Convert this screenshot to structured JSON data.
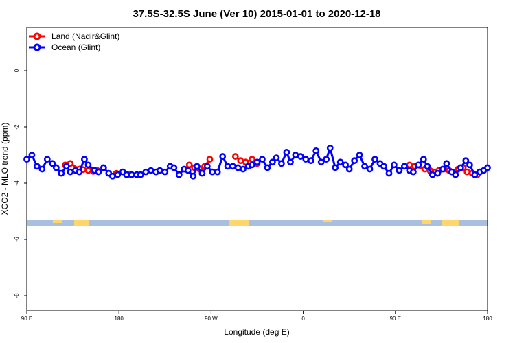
{
  "chart_data": {
    "type": "line",
    "title": "37.5S-32.5S June (Ver 10)   2015-01-01 to 2020-12-18",
    "xlabel": "Longitude (deg E)",
    "ylabel": "XCO2 - MLO trend (ppm)",
    "xlim": [
      90,
      450
    ],
    "ylim": [
      -8.3,
      1.5
    ],
    "x_ticks": [
      {
        "value": 90,
        "label": "90 E"
      },
      {
        "value": 180,
        "label": "180"
      },
      {
        "value": 270,
        "label": "90 W"
      },
      {
        "value": 360,
        "label": "0"
      },
      {
        "value": 450,
        "label": "90 E"
      },
      {
        "value": 540,
        "label": "180"
      }
    ],
    "y_ticks": [
      {
        "value": 0,
        "label": "0"
      },
      {
        "value": -2,
        "label": "-2"
      },
      {
        "value": -4,
        "label": "-4"
      },
      {
        "value": -6,
        "label": "-6"
      },
      {
        "value": -8,
        "label": "-8"
      }
    ],
    "x_tick_scale_note_hidden": true,
    "legend_position": "top-left",
    "ocean_band_color": "#a9bfdf",
    "land_band_color": "#ffd66b",
    "series": [
      {
        "name": "Land (Nadir&Glint)",
        "color": "#ff0000",
        "x": [
          120,
          124,
          131,
          134,
          138,
          142,
          145,
          160,
          170,
          217,
          221,
          225,
          229,
          233,
          253,
          257,
          261,
          266,
          270,
          389,
          393,
          401,
          405,
          409,
          412,
          416,
          420,
          423,
          427,
          431,
          434,
          438,
          442
        ],
        "y": [
          -3.35,
          -3.3,
          -3.5,
          -3.52,
          -3.55,
          -3.58,
          -3.55,
          -3.65,
          -3.7,
          -3.35,
          -3.45,
          -3.5,
          -3.4,
          -3.15,
          -3.05,
          -3.2,
          -3.25,
          -3.15,
          -3.3,
          -3.35,
          -3.4,
          -3.5,
          -3.55,
          -3.6,
          -3.55,
          -3.5,
          -3.55,
          -3.6,
          -3.5,
          -3.45,
          -3.6,
          -3.65,
          -3.7
        ]
      },
      {
        "name": "Ocean (Glint)",
        "color": "#0000ff",
        "x": [
          90,
          94,
          98,
          102,
          106,
          110,
          113,
          117,
          121,
          124,
          128,
          131,
          135,
          138,
          143,
          146,
          150,
          154,
          157,
          161,
          165,
          168,
          172,
          176,
          179,
          183,
          187,
          191,
          194,
          198,
          202,
          205,
          209,
          213,
          216,
          220,
          223,
          227,
          231,
          235,
          239,
          243,
          247,
          251,
          255,
          259,
          263,
          266,
          270,
          274,
          278,
          282,
          285,
          289,
          293,
          296,
          300,
          304,
          308,
          312,
          316,
          320,
          324,
          327,
          331,
          335,
          339,
          342,
          346,
          350,
          354,
          358,
          362,
          366,
          369,
          373,
          377,
          381,
          385,
          389,
          392,
          396,
          400,
          403,
          407,
          411,
          415,
          418,
          422,
          425,
          429,
          433,
          436,
          440,
          444,
          447,
          450
        ],
        "y": [
          -3.15,
          -3.0,
          -3.4,
          -3.5,
          -3.15,
          -3.3,
          -3.45,
          -3.65,
          -3.4,
          -3.6,
          -3.55,
          -3.6,
          -3.15,
          -3.35,
          -3.55,
          -3.6,
          -3.45,
          -3.65,
          -3.75,
          -3.7,
          -3.6,
          -3.7,
          -3.7,
          -3.7,
          -3.7,
          -3.6,
          -3.55,
          -3.6,
          -3.55,
          -3.6,
          -3.4,
          -3.45,
          -3.7,
          -3.5,
          -3.55,
          -3.75,
          -3.4,
          -3.65,
          -3.4,
          -3.6,
          -3.6,
          -3.05,
          -3.4,
          -3.4,
          -3.45,
          -3.5,
          -3.4,
          -3.35,
          -3.25,
          -3.15,
          -3.45,
          -3.25,
          -3.1,
          -3.3,
          -2.9,
          -3.25,
          -3.0,
          -3.05,
          -3.15,
          -3.2,
          -2.85,
          -3.25,
          -3.15,
          -2.75,
          -3.45,
          -3.25,
          -3.35,
          -3.5,
          -3.2,
          -3.0,
          -3.4,
          -3.5,
          -3.15,
          -3.3,
          -3.4,
          -3.65,
          -3.35,
          -3.55,
          -3.4,
          -3.55,
          -3.6,
          -3.35,
          -3.15,
          -3.4,
          -3.7,
          -3.65,
          -3.5,
          -3.3,
          -3.6,
          -3.7,
          -3.45,
          -3.2,
          -3.35,
          -3.7,
          -3.6,
          -3.55,
          -3.45
        ]
      }
    ]
  }
}
